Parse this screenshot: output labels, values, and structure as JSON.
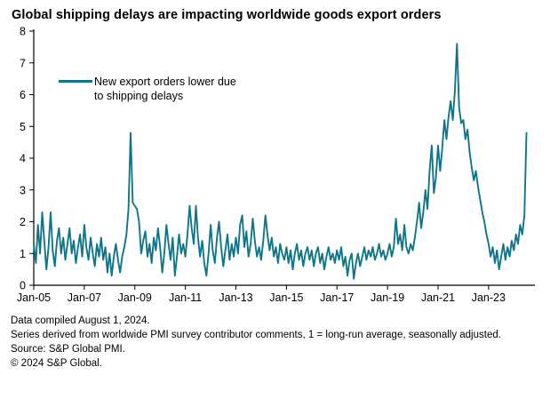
{
  "title": "Global shipping delays are impacting worldwide goods export orders",
  "footnotes": [
    "Data compiled August 1, 2024.",
    "Series derived from worldwide PMI survey contributor comments, 1 = long-run average, seasonally adjusted.",
    "Source: S&P Global PMI.",
    "© 2024 S&P Global."
  ],
  "chart_data": {
    "type": "line",
    "title": "Global shipping delays are impacting worldwide goods export orders",
    "xlabel": "",
    "ylabel": "",
    "ylim": [
      0,
      8
    ],
    "y_ticks": [
      0,
      1,
      2,
      3,
      4,
      5,
      6,
      7,
      8
    ],
    "x_axis_months": 238,
    "grid": false,
    "legend_position": "top-left-inside",
    "legend_lines": [
      "New export orders lower due",
      "to shipping delays"
    ],
    "x_ticks": [
      {
        "label": "Jan-05",
        "month_index": 0
      },
      {
        "label": "Jan-07",
        "month_index": 24
      },
      {
        "label": "Jan-09",
        "month_index": 48
      },
      {
        "label": "Jan-11",
        "month_index": 72
      },
      {
        "label": "Jan-13",
        "month_index": 96
      },
      {
        "label": "Jan-15",
        "month_index": 120
      },
      {
        "label": "Jan-17",
        "month_index": 144
      },
      {
        "label": "Jan-19",
        "month_index": 168
      },
      {
        "label": "Jan-21",
        "month_index": 192
      },
      {
        "label": "Jan-23",
        "month_index": 216
      }
    ],
    "series": [
      {
        "name": "New export orders lower due to shipping delays",
        "color": "#0F7689",
        "start": "2005-01",
        "frequency": "monthly",
        "values": [
          1.3,
          0.7,
          1.9,
          1.0,
          2.3,
          1.4,
          0.5,
          1.2,
          2.3,
          1.1,
          0.6,
          1.4,
          1.8,
          1.0,
          1.5,
          0.8,
          1.3,
          1.8,
          1.0,
          1.4,
          0.7,
          1.2,
          1.6,
          0.9,
          1.9,
          1.2,
          0.8,
          1.5,
          1.0,
          0.6,
          1.3,
          0.9,
          1.5,
          0.8,
          1.2,
          0.4,
          1.0,
          0.3,
          0.9,
          1.3,
          0.8,
          0.4,
          0.9,
          1.2,
          1.6,
          2.4,
          4.8,
          2.6,
          2.5,
          2.4,
          2.0,
          1.0,
          1.4,
          1.7,
          0.9,
          1.3,
          0.7,
          1.5,
          1.1,
          1.8,
          1.2,
          0.4,
          1.0,
          1.9,
          1.3,
          0.8,
          1.5,
          0.3,
          0.9,
          1.6,
          1.0,
          1.3,
          0.9,
          1.6,
          2.5,
          1.8,
          1.3,
          2.5,
          1.5,
          0.9,
          1.4,
          0.7,
          0.3,
          1.0,
          1.9,
          1.1,
          0.7,
          1.5,
          2.0,
          1.2,
          0.6,
          1.1,
          1.6,
          0.8,
          1.3,
          0.9,
          1.5,
          1.0,
          1.9,
          2.2,
          1.2,
          1.7,
          0.9,
          1.3,
          2.1,
          1.4,
          0.9,
          1.2,
          0.8,
          1.4,
          2.2,
          1.6,
          1.1,
          1.5,
          0.9,
          1.2,
          0.7,
          1.3,
          1.0,
          0.8,
          1.2,
          0.7,
          1.1,
          0.5,
          1.0,
          1.3,
          0.8,
          1.1,
          0.6,
          1.0,
          1.2,
          0.8,
          1.1,
          0.6,
          1.0,
          1.2,
          0.7,
          1.0,
          0.5,
          0.9,
          1.2,
          0.8,
          1.0,
          0.7,
          1.1,
          0.8,
          1.2,
          0.6,
          0.9,
          0.3,
          0.8,
          1.0,
          0.2,
          0.7,
          1.0,
          0.6,
          0.9,
          1.2,
          0.8,
          1.1,
          0.9,
          1.2,
          0.8,
          1.0,
          1.3,
          0.9,
          1.1,
          0.8,
          1.0,
          1.3,
          0.9,
          1.2,
          2.1,
          1.3,
          1.6,
          1.1,
          1.9,
          1.2,
          1.0,
          1.3,
          1.1,
          1.5,
          2.0,
          2.6,
          1.8,
          2.3,
          3.0,
          2.4,
          3.6,
          4.4,
          2.9,
          3.4,
          4.4,
          3.6,
          4.3,
          5.2,
          4.6,
          5.3,
          5.8,
          5.2,
          6.1,
          7.6,
          5.6,
          5.1,
          5.2,
          4.6,
          4.9,
          4.2,
          3.7,
          3.3,
          3.6,
          3.1,
          2.7,
          2.3,
          2.0,
          1.6,
          1.3,
          0.9,
          1.2,
          0.7,
          1.1,
          0.5,
          0.9,
          1.3,
          0.8,
          1.2,
          0.9,
          1.4,
          1.1,
          1.6,
          1.3,
          1.9,
          1.6,
          2.2,
          4.8
        ]
      }
    ]
  }
}
